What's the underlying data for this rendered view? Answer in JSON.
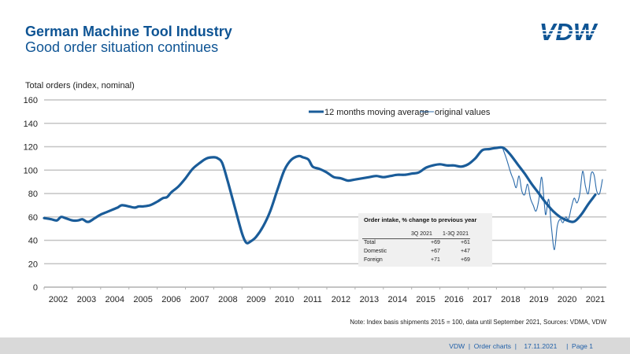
{
  "header": {
    "title": "German Machine Tool Industry",
    "subtitle": "Good order situation continues",
    "logo_text": "VDW"
  },
  "colors": {
    "brand_blue": "#0e5494",
    "series_blue": "#1a5c99",
    "grid": "#c0c0c0",
    "footer_bg": "#d9d9d9",
    "footer_text": "#1f5fa8"
  },
  "chart_data": {
    "type": "line",
    "title": "",
    "ylabel": "Total orders (index, nominal)",
    "xlabel": "",
    "ylim": [
      0,
      160
    ],
    "yticks": [
      "0",
      "20",
      "40",
      "60",
      "80",
      "100",
      "120",
      "140",
      "160"
    ],
    "xlim": [
      2002.0,
      2021.95
    ],
    "xtick_labels": [
      "2002",
      "2003",
      "2004",
      "2005",
      "2006",
      "2007",
      "2008",
      "2009",
      "2010",
      "2011",
      "2012",
      "2013",
      "2014",
      "2015",
      "2016",
      "2017",
      "2018",
      "2019",
      "2020",
      "2021"
    ],
    "grid": true,
    "legend": {
      "placement": "top-center",
      "entries": [
        "12 months moving average",
        "original values"
      ]
    },
    "series": [
      {
        "name": "12 months moving average",
        "x": [
          2002.0,
          2002.25,
          2002.45,
          2002.6,
          2002.75,
          2003.0,
          2003.2,
          2003.35,
          2003.5,
          2003.6,
          2003.8,
          2004.0,
          2004.2,
          2004.4,
          2004.6,
          2004.75,
          2005.0,
          2005.2,
          2005.35,
          2005.5,
          2005.75,
          2006.0,
          2006.2,
          2006.35,
          2006.5,
          2006.75,
          2007.0,
          2007.25,
          2007.5,
          2007.75,
          2008.0,
          2008.15,
          2008.3,
          2008.5,
          2008.75,
          2009.0,
          2009.15,
          2009.3,
          2009.5,
          2009.75,
          2010.0,
          2010.25,
          2010.5,
          2010.75,
          2011.0,
          2011.15,
          2011.35,
          2011.5,
          2011.75,
          2012.0,
          2012.25,
          2012.5,
          2012.75,
          2013.0,
          2013.25,
          2013.5,
          2013.75,
          2014.0,
          2014.25,
          2014.5,
          2014.75,
          2015.0,
          2015.25,
          2015.5,
          2015.75,
          2016.0,
          2016.25,
          2016.5,
          2016.75,
          2017.0,
          2017.25,
          2017.5,
          2017.75,
          2018.0,
          2018.25,
          2018.5,
          2018.75,
          2019.0,
          2019.25,
          2019.5,
          2019.75,
          2020.0,
          2020.25,
          2020.5,
          2020.75,
          2021.0,
          2021.25,
          2021.5
        ],
        "values": [
          59,
          58,
          57,
          60,
          59,
          57,
          57,
          58,
          56,
          56,
          59,
          62,
          64,
          66,
          68,
          70,
          69,
          68,
          69,
          69,
          70,
          73,
          76,
          77,
          81,
          86,
          93,
          101,
          106,
          110,
          111,
          110,
          106,
          90,
          68,
          46,
          38,
          39,
          43,
          52,
          65,
          83,
          100,
          109,
          112,
          111,
          109,
          103,
          101,
          98,
          94,
          93,
          91,
          92,
          93,
          94,
          95,
          94,
          95,
          96,
          96,
          97,
          98,
          102,
          104,
          105,
          104,
          104,
          103,
          105,
          110,
          117,
          118,
          119,
          119,
          113,
          105,
          97,
          88,
          80,
          72,
          65,
          60,
          57,
          56,
          62,
          71,
          79
        ]
      },
      {
        "name": "original values",
        "x": [
          2018.2,
          2018.35,
          2018.5,
          2018.6,
          2018.7,
          2018.8,
          2018.9,
          2019.0,
          2019.1,
          2019.2,
          2019.3,
          2019.4,
          2019.5,
          2019.6,
          2019.7,
          2019.75,
          2019.85,
          2019.95,
          2020.05,
          2020.15,
          2020.25,
          2020.35,
          2020.45,
          2020.55,
          2020.65,
          2020.75,
          2020.85,
          2020.95,
          2021.05,
          2021.15,
          2021.25,
          2021.35,
          2021.45,
          2021.55,
          2021.65,
          2021.75
        ],
        "values": [
          120,
          110,
          98,
          92,
          85,
          95,
          82,
          79,
          88,
          76,
          70,
          65,
          75,
          94,
          70,
          62,
          75,
          50,
          32,
          52,
          58,
          55,
          60,
          58,
          68,
          76,
          72,
          80,
          99,
          86,
          80,
          97,
          96,
          82,
          80,
          92
        ]
      }
    ]
  },
  "inset_table": {
    "title": "Order intake, % change to previous year",
    "columns": [
      "",
      "3Q 2021",
      "1-3Q 2021"
    ],
    "rows": [
      {
        "label": "Total",
        "q3": "+69",
        "ytd": "+61"
      },
      {
        "label": "Domestic",
        "q3": "+67",
        "ytd": "+47"
      },
      {
        "label": "Foreign",
        "q3": "+71",
        "ytd": "+69"
      }
    ]
  },
  "note": "Note: Index basis shipments 2015 = 100, data until September 2021, Sources: VDMA, VDW",
  "footer": {
    "text": "VDW  |  Order charts  |    17.11.2021     |  Page 1"
  }
}
